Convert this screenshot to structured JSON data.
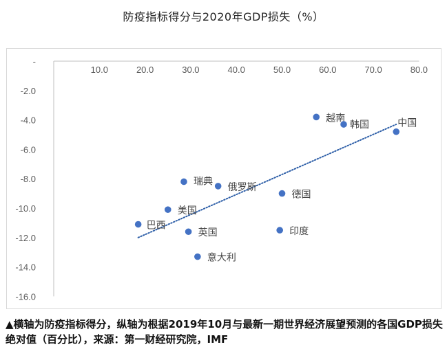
{
  "chart_data": {
    "type": "scatter",
    "title": "防疫指标得分与2020年GDP损失（%）",
    "caption": "▲横轴为防疫指标得分，纵轴为根据2019年10月与最新一期世界经济展望预测的各国GDP损失绝对值（百分比），来源：第一财经研究院，IMF",
    "xlim": [
      0,
      80
    ],
    "ylim": [
      -16,
      0
    ],
    "x_ticks": [
      "10.0",
      "20.0",
      "30.0",
      "40.0",
      "50.0",
      "60.0",
      "70.0",
      "80.0"
    ],
    "y_ticks": [
      "-",
      "-2.0",
      "-4.0",
      "-6.0",
      "-8.0",
      "-10.0",
      "-12.0",
      "-14.0",
      "-16.0"
    ],
    "points": [
      {
        "label": "越南",
        "x": 57.5,
        "y": -3.8
      },
      {
        "label": "韩国",
        "x": 63.5,
        "y": -4.3
      },
      {
        "label": "中国",
        "x": 75.0,
        "y": -4.8
      },
      {
        "label": "瑞典",
        "x": 28.5,
        "y": -8.2
      },
      {
        "label": "俄罗斯",
        "x": 36.0,
        "y": -8.5
      },
      {
        "label": "德国",
        "x": 50.0,
        "y": -9.0
      },
      {
        "label": "美国",
        "x": 25.0,
        "y": -10.1
      },
      {
        "label": "巴西",
        "x": 18.5,
        "y": -11.1
      },
      {
        "label": "英国",
        "x": 29.5,
        "y": -11.6
      },
      {
        "label": "印度",
        "x": 49.5,
        "y": -11.5
      },
      {
        "label": "意大利",
        "x": 31.5,
        "y": -13.3
      }
    ],
    "trendline": {
      "style": "dotted",
      "from": {
        "x": 18.5,
        "y": -12.0
      },
      "to": {
        "x": 75.0,
        "y": -4.3
      }
    },
    "colors": {
      "point": "#4472c4",
      "axis": "#bfbfbf",
      "trend": "#2e5fa8"
    }
  }
}
